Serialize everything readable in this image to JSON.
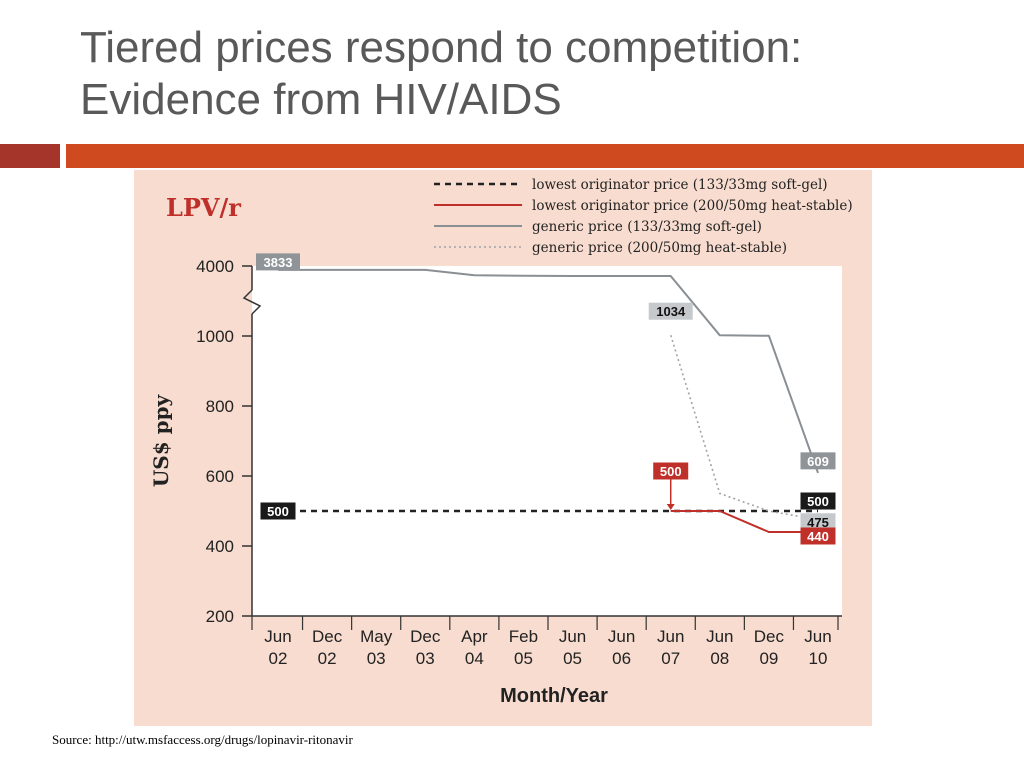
{
  "slide": {
    "title_line1": "Tiered prices respond to competition:",
    "title_line2": "Evidence from HIV/AIDS",
    "source": "Source: http://utw.msfaccess.org/drugs/lopinavir-ritonavir"
  },
  "colors": {
    "title": "#595959",
    "accent_dark": "#a5352a",
    "accent": "#d04a1f",
    "panel_bg": "#f7dccf",
    "drug_label": "#c0302a"
  },
  "chart_data": {
    "type": "line",
    "title": "LPV/r",
    "xlabel": "Month/Year",
    "ylabel": "US$ ppy",
    "x": [
      {
        "month": "Jun",
        "year": "02"
      },
      {
        "month": "Dec",
        "year": "02"
      },
      {
        "month": "May",
        "year": "03"
      },
      {
        "month": "Dec",
        "year": "03"
      },
      {
        "month": "Apr",
        "year": "04"
      },
      {
        "month": "Feb",
        "year": "05"
      },
      {
        "month": "Jun",
        "year": "05"
      },
      {
        "month": "Jun",
        "year": "06"
      },
      {
        "month": "Jun",
        "year": "07"
      },
      {
        "month": "Jun",
        "year": "08"
      },
      {
        "month": "Dec",
        "year": "09"
      },
      {
        "month": "Jun",
        "year": "10"
      }
    ],
    "y_ticks": [
      200,
      400,
      600,
      800,
      1000,
      4000
    ],
    "y_axis_break": "between 1000 and 4000",
    "ylim": [
      200,
      4000
    ],
    "legend_position": "top-right",
    "series": [
      {
        "name": "lowest originator price (133/33mg soft-gel)",
        "style": "dashed",
        "color": "#222222",
        "values": [
          500,
          500,
          500,
          500,
          500,
          500,
          500,
          500,
          500,
          500,
          500,
          500
        ]
      },
      {
        "name": "lowest originator price (200/50mg heat-stable)",
        "style": "solid",
        "color": "#c0302a",
        "values": [
          null,
          null,
          null,
          null,
          null,
          null,
          null,
          null,
          500,
          500,
          440,
          440
        ]
      },
      {
        "name": "generic price (133/33mg soft-gel)",
        "style": "solid",
        "color": "#8a8f94",
        "values": [
          3833,
          3833,
          3833,
          3833,
          3600,
          3580,
          3570,
          3570,
          3570,
          1030,
          1010,
          609
        ]
      },
      {
        "name": "generic price (200/50mg heat-stable)",
        "style": "dotted",
        "color": "#a0a4a8",
        "values": [
          null,
          null,
          null,
          null,
          null,
          null,
          null,
          null,
          1034,
          550,
          500,
          475
        ]
      }
    ],
    "annotations": [
      {
        "text": "3833",
        "x_index": 0,
        "value": 3833,
        "style": "gray"
      },
      {
        "text": "500",
        "x_index": 0,
        "value": 500,
        "style": "black"
      },
      {
        "text": "1034",
        "x_index": 8,
        "value": 1034,
        "style": "lightgray"
      },
      {
        "text": "500",
        "x_index": 8,
        "value": 500,
        "style": "red",
        "arrow": true
      },
      {
        "text": "609",
        "x_index": 11,
        "value": 609,
        "style": "gray"
      },
      {
        "text": "500",
        "x_index": 11,
        "value": 500,
        "style": "black"
      },
      {
        "text": "475",
        "x_index": 11,
        "value": 475,
        "style": "lightgray"
      },
      {
        "text": "440",
        "x_index": 11,
        "value": 440,
        "style": "red"
      }
    ]
  }
}
